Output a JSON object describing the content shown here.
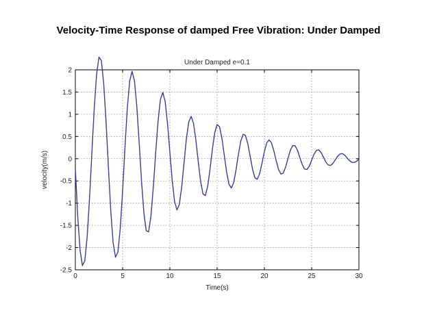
{
  "slide": {
    "title": "Velocity-Time Response of damped Free Vibration: Under Damped"
  },
  "chart_data": {
    "type": "line",
    "title": "Under Damped e=0.1",
    "xlabel": "Time(s)",
    "ylabel": "velocity(m/s)",
    "xlim": [
      0,
      30
    ],
    "ylim": [
      -2.5,
      2
    ],
    "xticks": [
      0,
      5,
      10,
      15,
      20,
      25,
      30
    ],
    "yticks": [
      2,
      1.5,
      1,
      0.5,
      0,
      -0.5,
      -1,
      -1.5,
      -2,
      -2.5
    ],
    "grid": true,
    "series": [
      {
        "name": "velocity",
        "color": "#3a3a9a",
        "x": [
          0,
          0.25,
          0.5,
          0.75,
          1.0,
          1.25,
          1.5,
          1.75,
          2.0,
          2.25,
          2.5,
          2.75,
          3.0,
          3.25,
          3.5,
          3.75,
          4.0,
          4.25,
          4.5,
          4.75,
          5.0,
          5.25,
          5.5,
          5.75,
          6.0,
          6.25,
          6.5,
          6.75,
          7.0,
          7.25,
          7.5,
          7.75,
          8.0,
          8.25,
          8.5,
          8.75,
          9.0,
          9.25,
          9.5,
          9.75,
          10.0,
          10.25,
          10.5,
          10.75,
          11.0,
          11.25,
          11.5,
          11.75,
          12.0,
          12.25,
          12.5,
          12.75,
          13.0,
          13.25,
          13.5,
          13.75,
          14.0,
          14.25,
          14.5,
          14.75,
          15.0,
          15.25,
          15.5,
          15.75,
          16.0,
          16.25,
          16.5,
          16.75,
          17.0,
          17.25,
          17.5,
          17.75,
          18.0,
          18.25,
          18.5,
          18.75,
          19.0,
          19.25,
          19.5,
          19.75,
          20.0,
          20.25,
          20.5,
          20.75,
          21.0,
          21.25,
          21.5,
          21.75,
          22.0,
          22.25,
          22.5,
          22.75,
          23.0,
          23.25,
          23.5,
          23.75,
          24.0,
          24.25,
          24.5,
          24.75,
          25.0,
          25.25,
          25.5,
          25.75,
          26.0,
          26.25,
          26.5,
          26.75,
          27.0,
          27.25,
          27.5,
          27.75,
          28.0,
          28.25,
          28.5,
          28.75,
          29.0,
          29.25,
          29.5,
          29.75,
          30.0
        ],
        "y": [
          -0.222,
          -1.292,
          -2.059,
          -2.407,
          -2.295,
          -1.756,
          -0.891,
          0.143,
          1.141,
          1.906,
          2.288,
          2.212,
          1.693,
          0.826,
          -0.207,
          -1.184,
          -1.896,
          -2.217,
          -2.099,
          -1.57,
          -0.727,
          0.252,
          1.145,
          1.752,
          1.966,
          1.758,
          1.184,
          0.37,
          -0.499,
          -1.216,
          -1.624,
          -1.645,
          -1.285,
          -0.637,
          0.135,
          0.843,
          1.333,
          1.49,
          1.29,
          0.794,
          0.145,
          -0.495,
          -0.963,
          -1.152,
          -1.032,
          -0.639,
          -0.089,
          0.452,
          0.831,
          0.952,
          0.797,
          0.421,
          -0.062,
          -0.506,
          -0.789,
          -0.83,
          -0.624,
          -0.231,
          0.219,
          0.588,
          0.769,
          0.722,
          0.468,
          0.089,
          -0.298,
          -0.573,
          -0.659,
          -0.537,
          -0.251,
          0.097,
          0.395,
          0.55,
          0.524,
          0.334,
          0.046,
          -0.242,
          -0.429,
          -0.462,
          -0.335,
          -0.098,
          0.164,
          0.358,
          0.424,
          0.355,
          0.179,
          -0.046,
          -0.243,
          -0.345,
          -0.321,
          -0.186,
          0.009,
          0.191,
          0.296,
          0.293,
          0.19,
          0.029,
          -0.131,
          -0.232,
          -0.243,
          -0.168,
          -0.034,
          0.1,
          0.186,
          0.199,
          0.139,
          0.034,
          -0.073,
          -0.142,
          -0.152,
          -0.106,
          -0.025,
          0.056,
          0.107,
          0.114,
          0.079,
          0.018,
          -0.042,
          -0.081,
          -0.086,
          -0.058,
          -0.011
        ]
      }
    ]
  }
}
